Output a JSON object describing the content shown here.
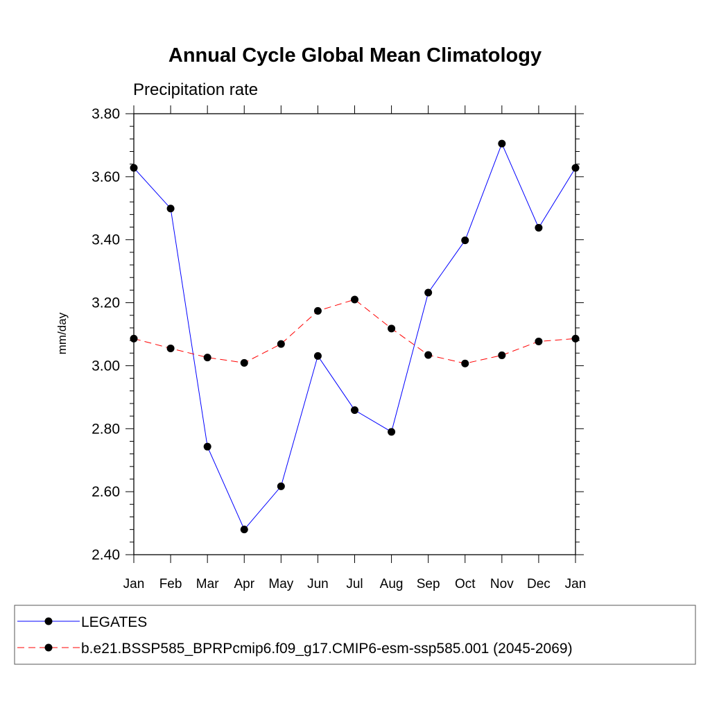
{
  "chart_data": {
    "type": "line",
    "title": "Annual Cycle Global Mean Climatology",
    "subtitle": "Precipitation rate",
    "ylabel": "mm/day",
    "xlabel": "",
    "ylim": [
      2.4,
      3.8
    ],
    "yticks": [
      "2.40",
      "2.60",
      "2.80",
      "3.00",
      "3.20",
      "3.40",
      "3.60",
      "3.80"
    ],
    "categories": [
      "Jan",
      "Feb",
      "Mar",
      "Apr",
      "May",
      "Jun",
      "Jul",
      "Aug",
      "Sep",
      "Oct",
      "Nov",
      "Dec",
      "Jan"
    ],
    "grid": false,
    "legend_position": "bottom",
    "series": [
      {
        "name": "LEGATES",
        "color": "#0000ff",
        "style": "solid",
        "values": [
          3.628,
          3.499,
          2.743,
          2.48,
          2.617,
          3.031,
          2.859,
          2.79,
          3.232,
          3.398,
          3.705,
          3.438,
          3.628
        ]
      },
      {
        "name": "b.e21.BSSP585_BPRPcmip6.f09_g17.CMIP6-esm-ssp585.001 (2045-2069)",
        "color": "#ff0000",
        "style": "dashed",
        "values": [
          3.086,
          3.055,
          3.026,
          3.009,
          3.069,
          3.174,
          3.21,
          3.118,
          3.034,
          3.007,
          3.033,
          3.077,
          3.086
        ]
      }
    ]
  }
}
